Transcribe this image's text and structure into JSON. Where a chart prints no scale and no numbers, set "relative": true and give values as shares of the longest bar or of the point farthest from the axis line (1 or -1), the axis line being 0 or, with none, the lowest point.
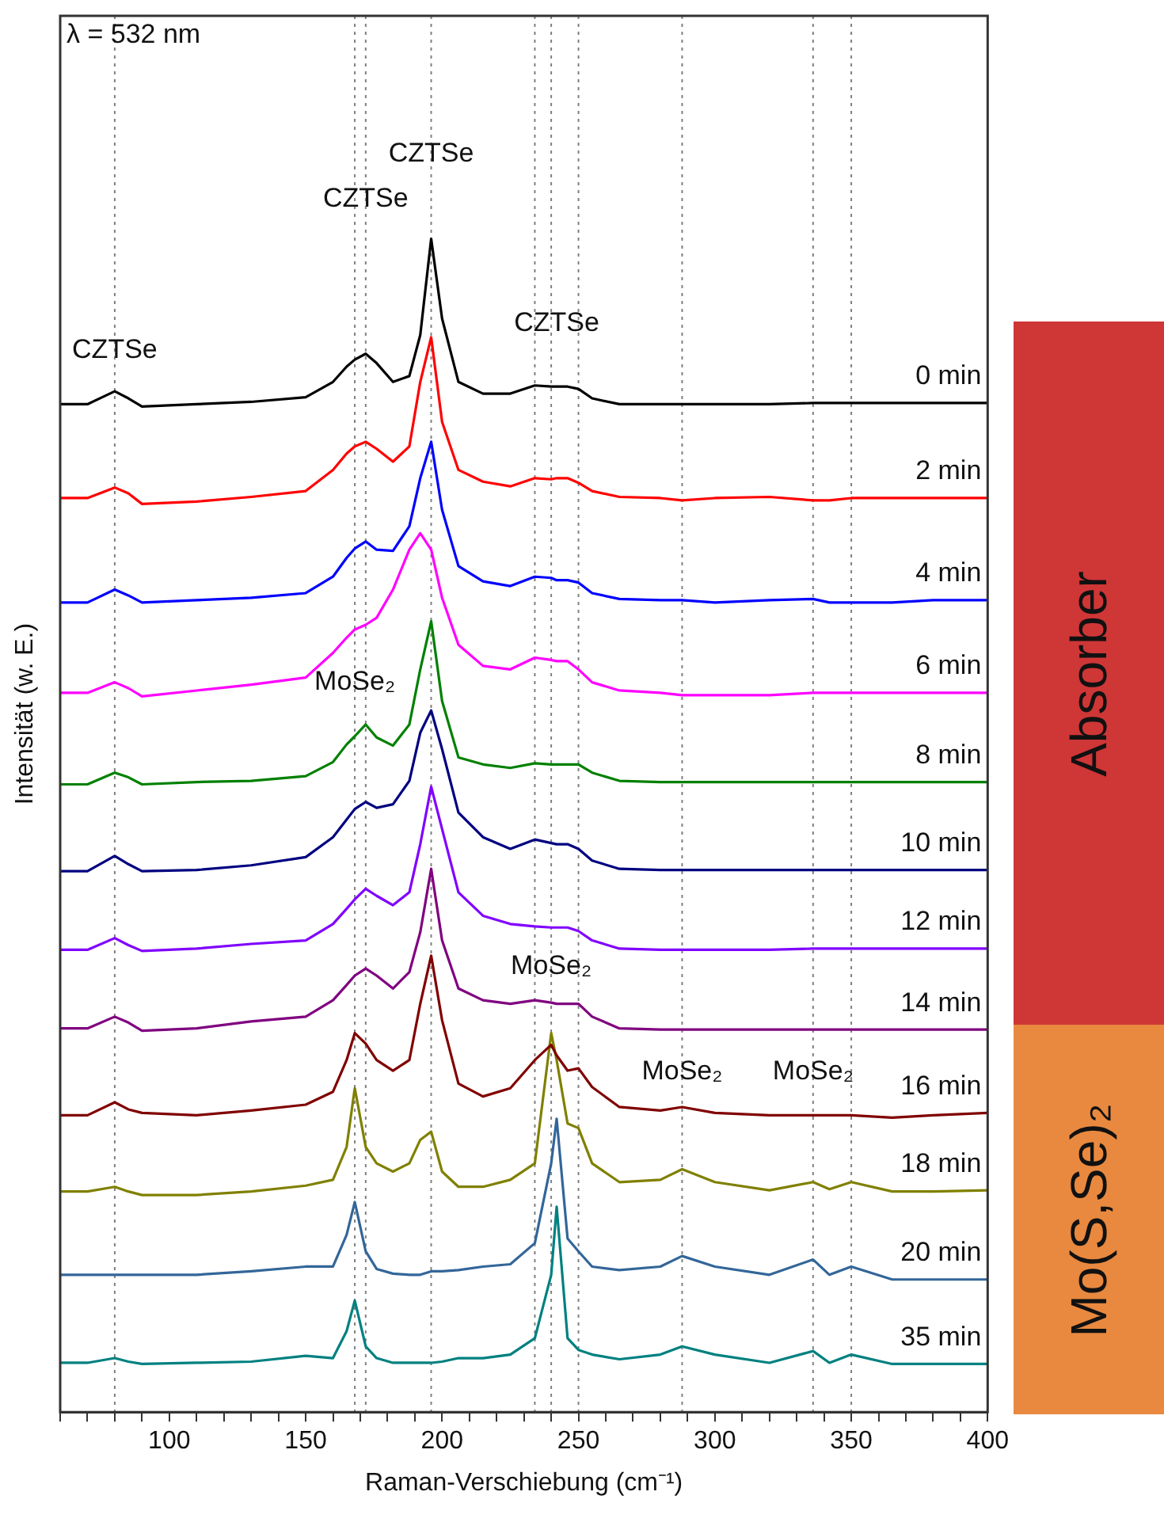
{
  "chart_data": {
    "type": "line",
    "relative": true,
    "xlabel": "Raman-Verschiebung (cm⁻¹)",
    "ylabel": "Intensität (w. E.)",
    "xlim": [
      60,
      400
    ],
    "xticks": [
      {
        "value": 60,
        "label": null
      },
      {
        "value": 70,
        "label": null
      },
      {
        "value": 80,
        "label": null
      },
      {
        "value": 90,
        "label": null
      },
      100,
      {
        "value": 110,
        "label": null
      },
      {
        "value": 120,
        "label": null
      },
      {
        "value": 130,
        "label": null
      },
      {
        "value": 140,
        "label": null
      },
      150,
      {
        "value": 160,
        "label": null
      },
      {
        "value": 170,
        "label": null
      },
      {
        "value": 180,
        "label": null
      },
      {
        "value": 190,
        "label": null
      },
      200,
      {
        "value": 210,
        "label": null
      },
      {
        "value": 220,
        "label": null
      },
      {
        "value": 230,
        "label": null
      },
      {
        "value": 240,
        "label": null
      },
      250,
      {
        "value": 260,
        "label": null
      },
      {
        "value": 270,
        "label": null
      },
      {
        "value": 280,
        "label": null
      },
      {
        "value": 290,
        "label": null
      },
      300,
      {
        "value": 310,
        "label": null
      },
      {
        "value": 320,
        "label": null
      },
      {
        "value": 330,
        "label": null
      },
      {
        "value": 340,
        "label": null
      },
      350,
      {
        "value": 360,
        "label": null
      },
      {
        "value": 370,
        "label": null
      },
      {
        "value": 380,
        "label": null
      },
      {
        "value": 390,
        "label": null
      },
      400
    ],
    "tick_labels": "x",
    "x": [
      60,
      70,
      80,
      85,
      90,
      110,
      130,
      150,
      160,
      165,
      168,
      172,
      176,
      182,
      188,
      192,
      196,
      200,
      206,
      215,
      225,
      234,
      240,
      242,
      246,
      250,
      255,
      265,
      280,
      288,
      300,
      320,
      336,
      342,
      350,
      365,
      380,
      400
    ],
    "series": [
      {
        "name": "0 min",
        "color": "#000000",
        "values": [
          0.859,
          0.859,
          0.87,
          0.864,
          0.857,
          0.859,
          0.861,
          0.865,
          0.878,
          0.891,
          0.897,
          0.902,
          0.894,
          0.878,
          0.883,
          0.918,
          1,
          0.932,
          0.878,
          0.868,
          0.868,
          0.875,
          0.874,
          0.874,
          0.874,
          0.872,
          0.864,
          0.859,
          0.859,
          0.859,
          0.859,
          0.859,
          0.86,
          0.86,
          0.86,
          0.86,
          0.86,
          0.86
        ]
      },
      {
        "name": "2 min",
        "color": "#ff0000",
        "values": [
          0.779,
          0.779,
          0.788,
          0.783,
          0.774,
          0.776,
          0.78,
          0.785,
          0.803,
          0.817,
          0.823,
          0.827,
          0.821,
          0.81,
          0.823,
          0.878,
          0.916,
          0.844,
          0.803,
          0.793,
          0.789,
          0.796,
          0.795,
          0.796,
          0.796,
          0.792,
          0.785,
          0.78,
          0.779,
          0.777,
          0.779,
          0.78,
          0.777,
          0.777,
          0.779,
          0.779,
          0.779,
          0.779
        ]
      },
      {
        "name": "4 min",
        "color": "#0000ff",
        "values": [
          0.69,
          0.69,
          0.701,
          0.696,
          0.69,
          0.692,
          0.694,
          0.698,
          0.712,
          0.728,
          0.736,
          0.742,
          0.735,
          0.734,
          0.755,
          0.796,
          0.827,
          0.769,
          0.721,
          0.708,
          0.704,
          0.712,
          0.711,
          0.709,
          0.709,
          0.707,
          0.698,
          0.693,
          0.692,
          0.692,
          0.69,
          0.692,
          0.693,
          0.69,
          0.69,
          0.69,
          0.692,
          0.692
        ]
      },
      {
        "name": "6 min",
        "color": "#ff00ff",
        "values": [
          0.613,
          0.613,
          0.622,
          0.617,
          0.61,
          0.615,
          0.62,
          0.626,
          0.647,
          0.66,
          0.667,
          0.671,
          0.677,
          0.701,
          0.735,
          0.749,
          0.735,
          0.694,
          0.654,
          0.636,
          0.633,
          0.643,
          0.641,
          0.64,
          0.64,
          0.633,
          0.622,
          0.615,
          0.613,
          0.611,
          0.611,
          0.611,
          0.613,
          0.613,
          0.613,
          0.613,
          0.613,
          0.613
        ]
      },
      {
        "name": "8 min",
        "color": "#008000",
        "values": [
          0.535,
          0.535,
          0.545,
          0.541,
          0.535,
          0.537,
          0.538,
          0.542,
          0.554,
          0.569,
          0.576,
          0.586,
          0.575,
          0.568,
          0.586,
          0.633,
          0.674,
          0.606,
          0.558,
          0.552,
          0.549,
          0.553,
          0.552,
          0.552,
          0.552,
          0.552,
          0.545,
          0.538,
          0.537,
          0.537,
          0.537,
          0.537,
          0.537,
          0.537,
          0.537,
          0.537,
          0.537,
          0.537
        ]
      },
      {
        "name": "10 min",
        "color": "#000080",
        "values": [
          0.461,
          0.461,
          0.474,
          0.467,
          0.461,
          0.462,
          0.466,
          0.473,
          0.49,
          0.505,
          0.514,
          0.52,
          0.515,
          0.518,
          0.538,
          0.579,
          0.598,
          0.565,
          0.511,
          0.49,
          0.48,
          0.488,
          0.485,
          0.484,
          0.484,
          0.48,
          0.47,
          0.463,
          0.462,
          0.462,
          0.462,
          0.462,
          0.462,
          0.462,
          0.462,
          0.462,
          0.462,
          0.462
        ]
      },
      {
        "name": "12 min",
        "color": "#8000ff",
        "values": [
          0.394,
          0.394,
          0.404,
          0.398,
          0.393,
          0.395,
          0.399,
          0.402,
          0.416,
          0.429,
          0.437,
          0.446,
          0.44,
          0.432,
          0.443,
          0.484,
          0.533,
          0.497,
          0.443,
          0.423,
          0.416,
          0.414,
          0.413,
          0.413,
          0.413,
          0.41,
          0.402,
          0.395,
          0.394,
          0.394,
          0.394,
          0.394,
          0.395,
          0.395,
          0.395,
          0.395,
          0.395,
          0.395
        ]
      },
      {
        "name": "14 min",
        "color": "#800080",
        "values": [
          0.327,
          0.327,
          0.337,
          0.332,
          0.325,
          0.327,
          0.333,
          0.337,
          0.351,
          0.364,
          0.372,
          0.378,
          0.372,
          0.361,
          0.375,
          0.409,
          0.463,
          0.402,
          0.361,
          0.351,
          0.348,
          0.351,
          0.349,
          0.348,
          0.348,
          0.348,
          0.337,
          0.327,
          0.326,
          0.326,
          0.326,
          0.326,
          0.326,
          0.326,
          0.326,
          0.326,
          0.326,
          0.326
        ]
      },
      {
        "name": "16 min",
        "color": "#800000",
        "values": [
          0.253,
          0.253,
          0.264,
          0.258,
          0.255,
          0.253,
          0.257,
          0.262,
          0.273,
          0.3,
          0.323,
          0.314,
          0.3,
          0.291,
          0.3,
          0.348,
          0.389,
          0.334,
          0.28,
          0.269,
          0.276,
          0.3,
          0.313,
          0.304,
          0.291,
          0.293,
          0.277,
          0.26,
          0.257,
          0.26,
          0.255,
          0.253,
          0.253,
          0.253,
          0.253,
          0.251,
          0.253,
          0.255
        ]
      },
      {
        "name": "18 min",
        "color": "#808000",
        "values": [
          0.188,
          0.188,
          0.192,
          0.188,
          0.185,
          0.185,
          0.188,
          0.193,
          0.198,
          0.226,
          0.276,
          0.226,
          0.212,
          0.205,
          0.212,
          0.232,
          0.239,
          0.205,
          0.192,
          0.192,
          0.198,
          0.212,
          0.323,
          0.3,
          0.246,
          0.242,
          0.212,
          0.196,
          0.198,
          0.207,
          0.196,
          0.189,
          0.196,
          0.19,
          0.196,
          0.188,
          0.188,
          0.189
        ]
      },
      {
        "name": "20 min",
        "color": "#336699",
        "values": [
          0.117,
          0.117,
          0.117,
          0.117,
          0.117,
          0.117,
          0.12,
          0.124,
          0.124,
          0.151,
          0.179,
          0.137,
          0.122,
          0.118,
          0.117,
          0.117,
          0.12,
          0.12,
          0.121,
          0.124,
          0.126,
          0.144,
          0.212,
          0.25,
          0.148,
          0.137,
          0.124,
          0.121,
          0.124,
          0.133,
          0.124,
          0.117,
          0.13,
          0.117,
          0.124,
          0.113,
          0.113,
          0.113
        ]
      },
      {
        "name": "35 min",
        "color": "#008080",
        "values": [
          0.042,
          0.042,
          0.046,
          0.043,
          0.041,
          0.042,
          0.043,
          0.048,
          0.046,
          0.069,
          0.095,
          0.056,
          0.046,
          0.042,
          0.042,
          0.042,
          0.042,
          0.043,
          0.046,
          0.046,
          0.049,
          0.063,
          0.117,
          0.175,
          0.063,
          0.053,
          0.049,
          0.045,
          0.049,
          0.056,
          0.049,
          0.042,
          0.052,
          0.042,
          0.049,
          0.041,
          0.041,
          0.041
        ]
      }
    ],
    "ref_lines": [
      {
        "axis": "x",
        "value": 80,
        "color": "#808080",
        "line_style": "dotted"
      },
      {
        "axis": "x",
        "value": 168,
        "color": "#808080",
        "line_style": "dotted"
      },
      {
        "axis": "x",
        "value": 172,
        "color": "#808080",
        "line_style": "dotted"
      },
      {
        "axis": "x",
        "value": 196,
        "color": "#808080",
        "line_style": "dotted"
      },
      {
        "axis": "x",
        "value": 234,
        "color": "#808080",
        "line_style": "dotted"
      },
      {
        "axis": "x",
        "value": 240,
        "color": "#808080",
        "line_style": "dotted"
      },
      {
        "axis": "x",
        "value": 250,
        "color": "#808080",
        "line_style": "dotted"
      },
      {
        "axis": "x",
        "value": 288,
        "color": "#808080",
        "line_style": "dotted"
      },
      {
        "axis": "x",
        "value": 336,
        "color": "#808080",
        "line_style": "dotted"
      },
      {
        "axis": "x",
        "value": 350,
        "color": "#808080",
        "line_style": "dotted"
      }
    ],
    "annotations": [
      "λ = 532 nm",
      "Absorber",
      "Mo(S,Se)₂",
      {
        "text": "CZTSe",
        "x": 80,
        "y": 0.905
      },
      {
        "text": "CZTSe",
        "x": 172,
        "y": 1.034
      },
      {
        "text": "CZTSe",
        "x": 196,
        "y": 1.072
      },
      {
        "text": "CZTSe",
        "x": 242,
        "y": 0.928
      },
      {
        "text": "MoSe₂",
        "x": 168,
        "y": 0.622
      },
      {
        "text": "MoSe₂",
        "x": 240,
        "y": 0.38
      },
      {
        "text": "MoSe₂",
        "x": 288,
        "y": 0.29
      },
      {
        "text": "MoSe₂",
        "x": 336,
        "y": 0.29
      }
    ]
  }
}
